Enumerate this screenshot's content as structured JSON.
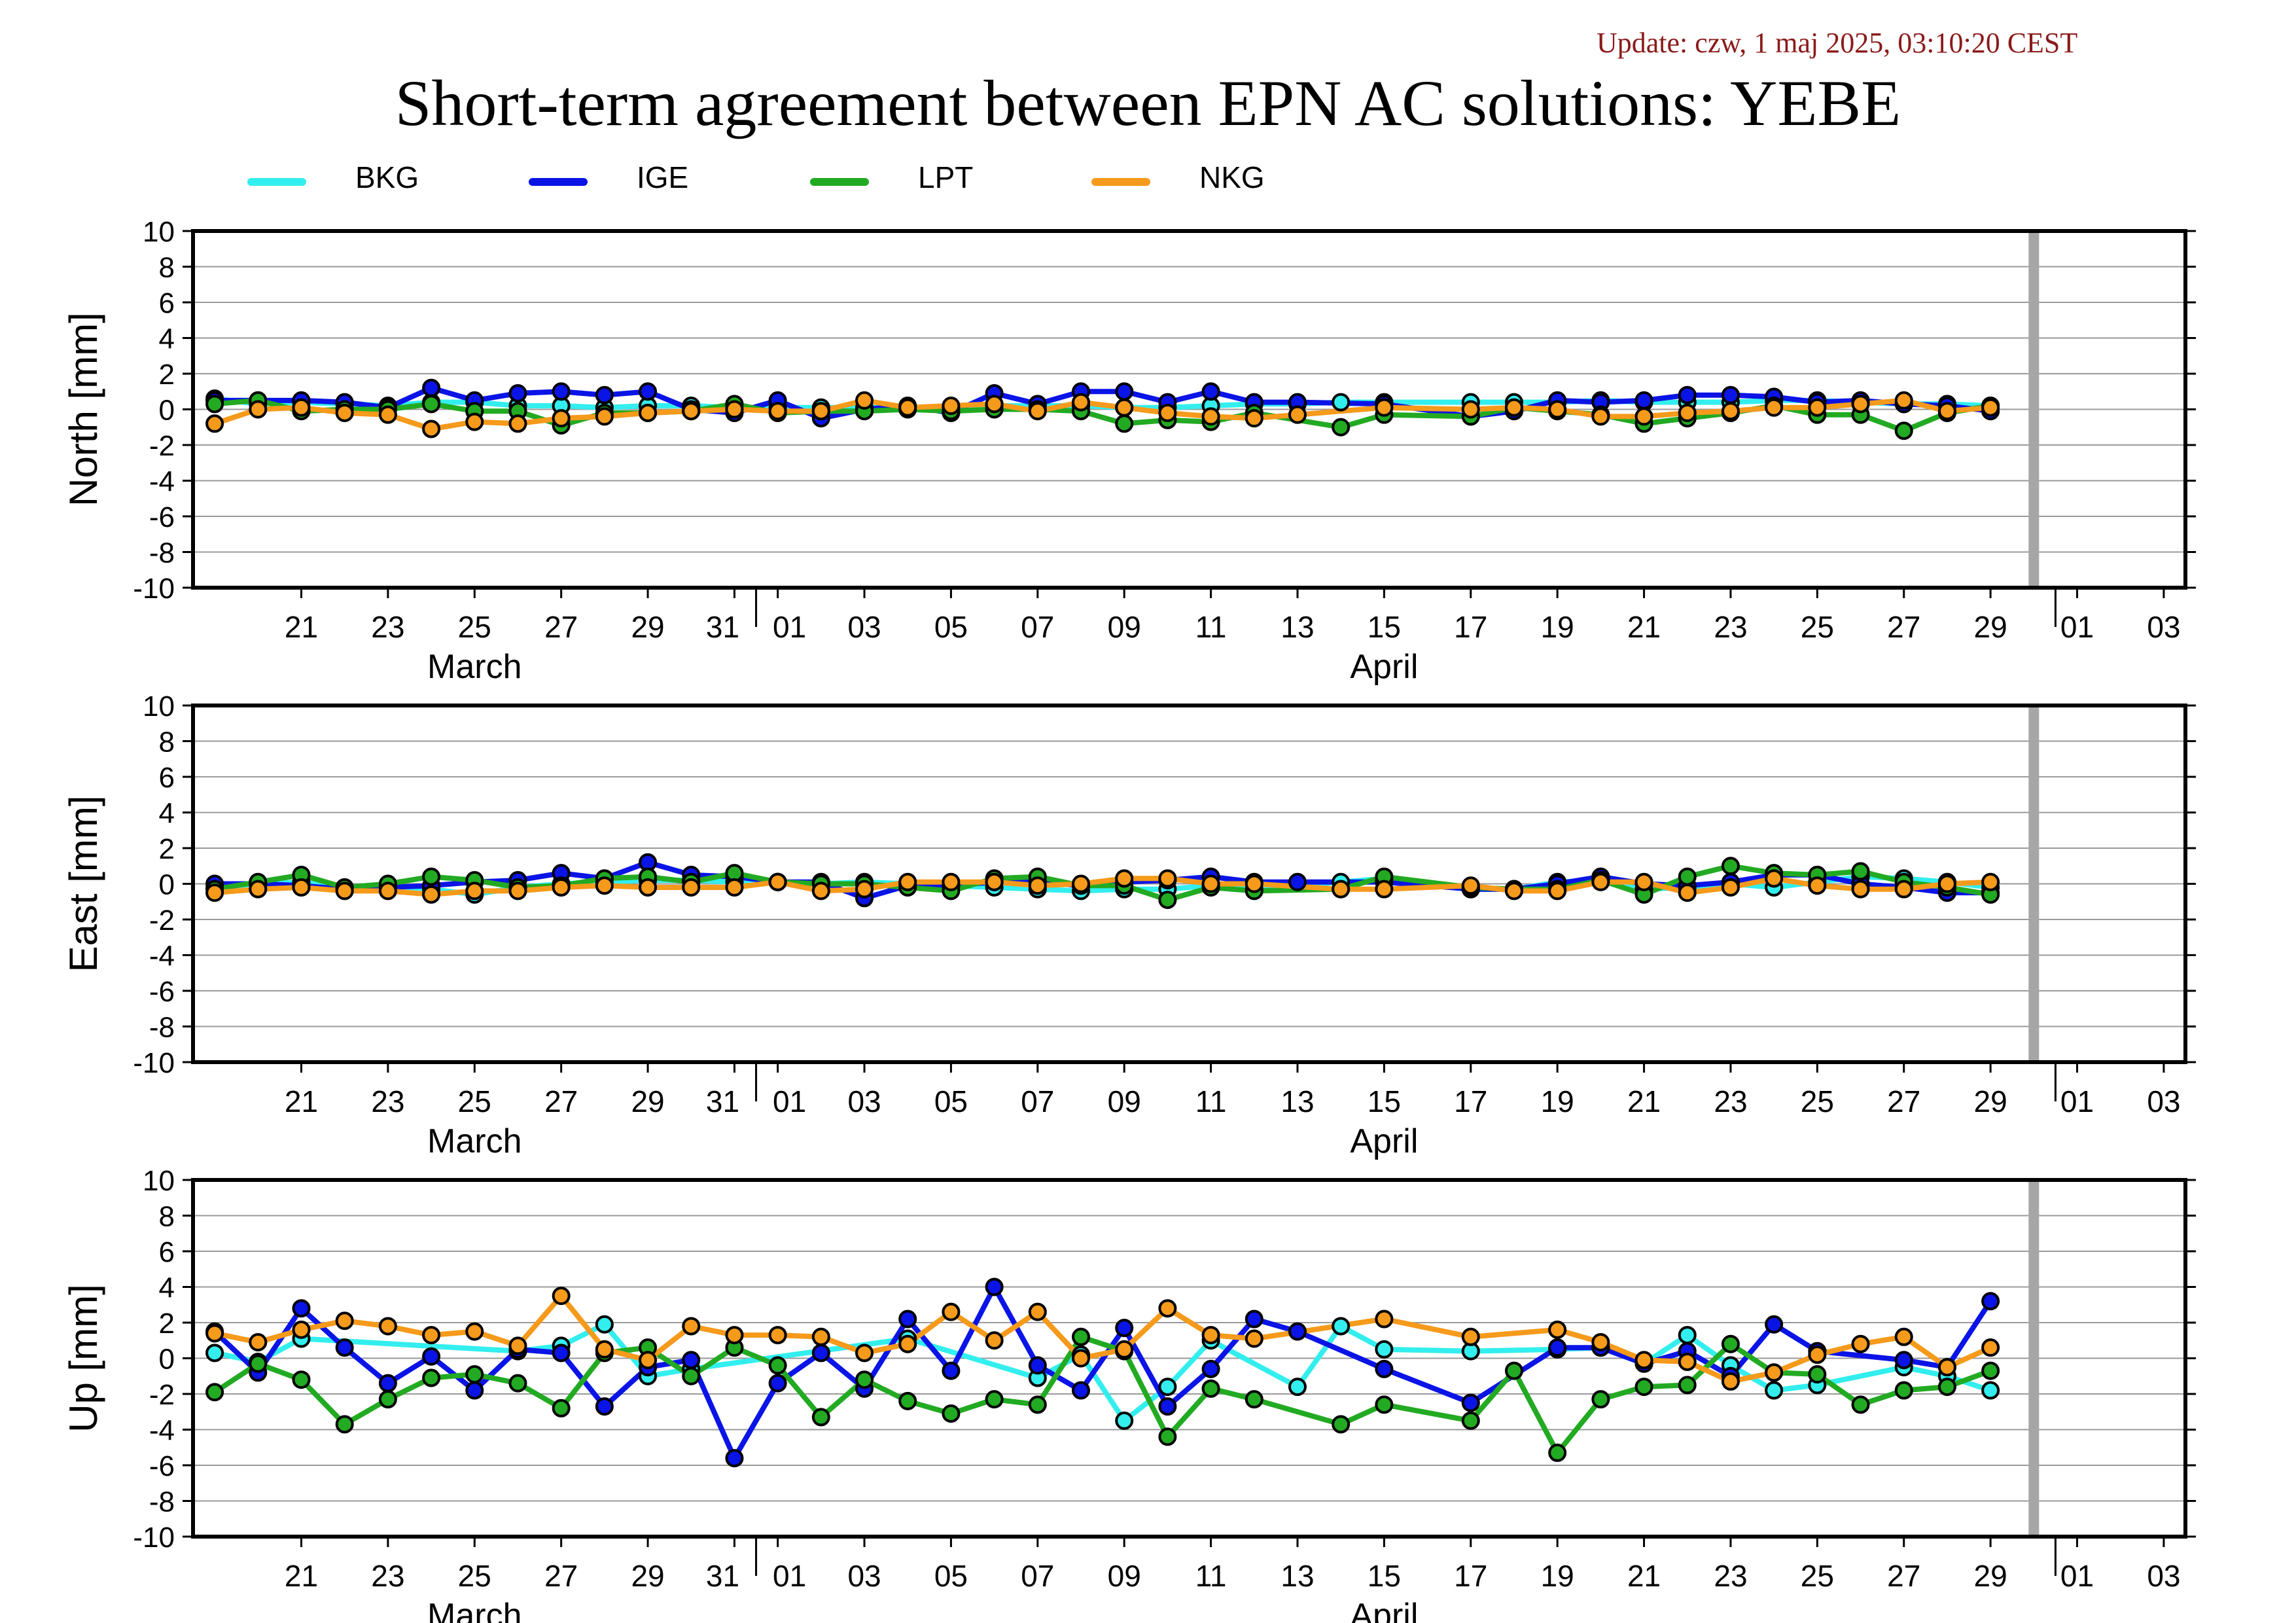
{
  "header": {
    "update": "Update: czw, 1 maj 2025, 03:10:20 CEST",
    "title": "Short-term agreement between EPN AC solutions: YEBE"
  },
  "legend": [
    {
      "name": "BKG",
      "color": "#33eeee"
    },
    {
      "name": "IGE",
      "color": "#0a14e6"
    },
    {
      "name": "LPT",
      "color": "#22aa22"
    },
    {
      "name": "NKG",
      "color": "#f59a1b"
    }
  ],
  "x_axis": {
    "day_ticks": [
      "21",
      "23",
      "25",
      "27",
      "29",
      "31",
      "01",
      "03",
      "05",
      "07",
      "09",
      "11",
      "13",
      "15",
      "17",
      "19",
      "21",
      "23",
      "25",
      "27",
      "29",
      "01",
      "03"
    ],
    "month_labels": [
      "March",
      "April"
    ],
    "range": [
      "2025-03-19",
      "2025-05-04"
    ],
    "marker_date": "2025-04-30"
  },
  "y_ticks": [
    "10",
    "8",
    "6",
    "4",
    "2",
    "0",
    "-2",
    "-4",
    "-6",
    "-8",
    "-10"
  ],
  "chart_data": [
    {
      "type": "line",
      "ylabel": "North [mm]",
      "ylim": [
        -10,
        10
      ],
      "grid": true,
      "x": [
        "2025-03-19",
        "2025-03-20",
        "2025-03-21",
        "2025-03-22",
        "2025-03-23",
        "2025-03-24",
        "2025-03-25",
        "2025-03-26",
        "2025-03-27",
        "2025-03-28",
        "2025-03-29",
        "2025-03-30",
        "2025-03-31",
        "2025-04-01",
        "2025-04-02",
        "2025-04-03",
        "2025-04-04",
        "2025-04-05",
        "2025-04-06",
        "2025-04-07",
        "2025-04-08",
        "2025-04-09",
        "2025-04-10",
        "2025-04-11",
        "2025-04-12",
        "2025-04-13",
        "2025-04-14",
        "2025-04-15",
        "2025-04-16",
        "2025-04-17",
        "2025-04-18",
        "2025-04-19",
        "2025-04-20",
        "2025-04-21",
        "2025-04-22",
        "2025-04-23",
        "2025-04-24",
        "2025-04-25",
        "2025-04-26",
        "2025-04-27",
        "2025-04-28",
        "2025-04-29"
      ],
      "series": [
        {
          "name": "BKG",
          "values": [
            0.6,
            0.3,
            0.4,
            0.3,
            0.2,
            0.4,
            0.4,
            0.2,
            0.2,
            0.1,
            0.2,
            0.2,
            0.1,
            0.1,
            0.1,
            0.1,
            0.1,
            0.1,
            0.2,
            0.2,
            0.2,
            0.1,
            0.1,
            0.2,
            0.3,
            0.3,
            0.4,
            0.4,
            null,
            0.4,
            0.4,
            0.4,
            0.5,
            0.4,
            0.4,
            0.4,
            0.5,
            0.5,
            0.4,
            0.3,
            0.3,
            0.2
          ]
        },
        {
          "name": "IGE",
          "values": [
            0.5,
            0.5,
            0.5,
            0.4,
            0.1,
            1.2,
            0.5,
            0.9,
            1.0,
            0.8,
            1.0,
            0.0,
            -0.2,
            0.5,
            -0.5,
            0.0,
            0.2,
            -0.2,
            0.9,
            0.3,
            1.0,
            1.0,
            0.4,
            1.0,
            0.4,
            0.4,
            null,
            0.3,
            null,
            -0.4,
            -0.1,
            0.5,
            0.4,
            0.5,
            0.8,
            0.8,
            0.7,
            0.4,
            0.5,
            0.3,
            0.2,
            -0.1
          ]
        },
        {
          "name": "LPT",
          "values": [
            0.3,
            0.5,
            -0.1,
            0.0,
            0.0,
            0.3,
            -0.1,
            -0.1,
            -0.9,
            -0.2,
            -0.2,
            -0.1,
            0.3,
            -0.2,
            -0.1,
            -0.1,
            0.0,
            -0.1,
            0.0,
            0.0,
            -0.1,
            -0.8,
            -0.6,
            -0.7,
            -0.2,
            null,
            -1.0,
            -0.3,
            null,
            -0.4,
            0.1,
            -0.1,
            -0.3,
            -0.8,
            -0.5,
            -0.2,
            0.2,
            -0.3,
            -0.3,
            -1.2,
            -0.2,
            0.2
          ]
        },
        {
          "name": "NKG",
          "values": [
            -0.8,
            0.0,
            0.1,
            -0.2,
            -0.3,
            -1.1,
            -0.7,
            -0.8,
            -0.5,
            -0.4,
            -0.2,
            -0.1,
            0.0,
            -0.1,
            -0.1,
            0.5,
            0.1,
            0.2,
            0.3,
            -0.1,
            0.4,
            0.1,
            -0.2,
            -0.4,
            -0.5,
            -0.3,
            null,
            0.1,
            null,
            0.0,
            0.1,
            0.0,
            -0.4,
            -0.4,
            -0.2,
            -0.1,
            0.1,
            0.1,
            0.3,
            0.5,
            -0.1,
            0.1
          ]
        }
      ]
    },
    {
      "type": "line",
      "ylabel": "East [mm]",
      "ylim": [
        -10,
        10
      ],
      "grid": true,
      "x": [
        "2025-03-19",
        "2025-03-20",
        "2025-03-21",
        "2025-03-22",
        "2025-03-23",
        "2025-03-24",
        "2025-03-25",
        "2025-03-26",
        "2025-03-27",
        "2025-03-28",
        "2025-03-29",
        "2025-03-30",
        "2025-03-31",
        "2025-04-01",
        "2025-04-02",
        "2025-04-03",
        "2025-04-04",
        "2025-04-05",
        "2025-04-06",
        "2025-04-07",
        "2025-04-08",
        "2025-04-09",
        "2025-04-10",
        "2025-04-11",
        "2025-04-12",
        "2025-04-13",
        "2025-04-14",
        "2025-04-15",
        "2025-04-16",
        "2025-04-17",
        "2025-04-18",
        "2025-04-19",
        "2025-04-20",
        "2025-04-21",
        "2025-04-22",
        "2025-04-23",
        "2025-04-24",
        "2025-04-25",
        "2025-04-26",
        "2025-04-27",
        "2025-04-28",
        "2025-04-29"
      ],
      "series": [
        {
          "name": "BKG",
          "values": [
            -0.2,
            0.0,
            0.1,
            -0.2,
            -0.1,
            -0.3,
            -0.6,
            -0.2,
            0.0,
            0.1,
            0.2,
            0.2,
            0.1,
            0.1,
            0.0,
            0.1,
            0.0,
            -0.1,
            -0.2,
            -0.3,
            -0.4,
            -0.3,
            -0.3,
            -0.1,
            -0.3,
            null,
            0.1,
            0.3,
            null,
            -0.3,
            -0.3,
            0.1,
            0.2,
            -0.3,
            -0.2,
            0.0,
            -0.2,
            0.1,
            0.4,
            0.3,
            0.1,
            -0.2
          ]
        },
        {
          "name": "IGE",
          "values": [
            0.0,
            0.0,
            -0.1,
            -0.3,
            -0.2,
            -0.1,
            0.1,
            0.2,
            0.6,
            0.3,
            1.2,
            0.5,
            0.4,
            0.1,
            0.1,
            -0.8,
            -0.1,
            -0.1,
            0.1,
            0.1,
            -0.1,
            0.1,
            0.2,
            0.4,
            0.1,
            0.1,
            null,
            0.1,
            null,
            -0.3,
            -0.3,
            0.0,
            0.4,
            0.0,
            -0.1,
            0.1,
            0.5,
            0.5,
            0.0,
            -0.2,
            -0.5,
            -0.5
          ]
        },
        {
          "name": "LPT",
          "values": [
            -0.3,
            0.1,
            0.5,
            -0.2,
            0.0,
            0.4,
            0.2,
            -0.2,
            -0.1,
            0.3,
            0.4,
            0.1,
            0.6,
            0.1,
            0.0,
            0.0,
            -0.2,
            -0.4,
            0.3,
            0.4,
            -0.1,
            -0.1,
            -0.9,
            -0.2,
            -0.4,
            null,
            -0.3,
            0.4,
            null,
            -0.2,
            -0.3,
            -0.3,
            0.2,
            -0.6,
            0.4,
            1.0,
            0.6,
            0.5,
            0.7,
            0.1,
            -0.2,
            -0.6
          ]
        },
        {
          "name": "NKG",
          "values": [
            -0.5,
            -0.3,
            -0.2,
            -0.4,
            -0.4,
            -0.6,
            -0.4,
            -0.4,
            -0.2,
            -0.1,
            -0.2,
            -0.2,
            -0.2,
            0.1,
            -0.4,
            -0.3,
            0.1,
            0.1,
            0.1,
            -0.1,
            0.0,
            0.3,
            0.3,
            0.0,
            0.0,
            null,
            -0.3,
            -0.3,
            null,
            -0.1,
            -0.4,
            -0.4,
            0.1,
            0.1,
            -0.5,
            -0.2,
            0.3,
            -0.1,
            -0.3,
            -0.3,
            0.0,
            0.1
          ]
        }
      ]
    },
    {
      "type": "line",
      "ylabel": "Up [mm]",
      "ylim": [
        -10,
        10
      ],
      "grid": true,
      "x": [
        "2025-03-19",
        "2025-03-20",
        "2025-03-21",
        "2025-03-22",
        "2025-03-23",
        "2025-03-24",
        "2025-03-25",
        "2025-03-26",
        "2025-03-27",
        "2025-03-28",
        "2025-03-29",
        "2025-03-30",
        "2025-03-31",
        "2025-04-01",
        "2025-04-02",
        "2025-04-03",
        "2025-04-04",
        "2025-04-05",
        "2025-04-06",
        "2025-04-07",
        "2025-04-08",
        "2025-04-09",
        "2025-04-10",
        "2025-04-11",
        "2025-04-12",
        "2025-04-13",
        "2025-04-14",
        "2025-04-15",
        "2025-04-16",
        "2025-04-17",
        "2025-04-18",
        "2025-04-19",
        "2025-04-20",
        "2025-04-21",
        "2025-04-22",
        "2025-04-23",
        "2025-04-24",
        "2025-04-25",
        "2025-04-26",
        "2025-04-27",
        "2025-04-28",
        "2025-04-29"
      ],
      "series": [
        {
          "name": "BKG",
          "values": [
            0.3,
            -0.2,
            1.1,
            null,
            null,
            null,
            null,
            0.4,
            0.7,
            1.9,
            -1.0,
            -0.6,
            null,
            null,
            null,
            null,
            1.1,
            null,
            null,
            -1.1,
            0.2,
            -3.5,
            -1.6,
            1.0,
            null,
            -1.6,
            1.8,
            0.5,
            null,
            0.4,
            null,
            0.5,
            0.6,
            -0.3,
            1.3,
            -0.4,
            -1.8,
            -1.5,
            null,
            -0.5,
            -1.0,
            -1.8
          ]
        },
        {
          "name": "IGE",
          "values": [
            1.5,
            -0.8,
            2.8,
            0.6,
            -1.4,
            0.1,
            -1.8,
            0.5,
            0.3,
            -2.7,
            -0.5,
            -0.1,
            -5.6,
            -1.4,
            0.3,
            -1.7,
            2.2,
            -0.7,
            4.0,
            -0.4,
            -1.8,
            1.7,
            -2.7,
            -0.6,
            2.2,
            1.5,
            null,
            -0.6,
            null,
            -2.5,
            null,
            0.6,
            0.6,
            -0.3,
            0.4,
            -1.0,
            1.9,
            0.4,
            null,
            -0.1,
            -0.5,
            3.2
          ]
        },
        {
          "name": "LPT",
          "values": [
            -1.9,
            -0.3,
            -1.2,
            -3.7,
            -2.3,
            -1.1,
            -0.9,
            -1.4,
            -2.8,
            0.3,
            0.6,
            -1.0,
            0.6,
            -0.4,
            -3.3,
            -1.2,
            -2.4,
            -3.1,
            -2.3,
            -2.6,
            1.2,
            0.4,
            -4.4,
            -1.7,
            -2.3,
            null,
            -3.7,
            -2.6,
            null,
            -3.5,
            -0.7,
            -5.3,
            -2.3,
            -1.6,
            -1.5,
            0.8,
            -0.8,
            -0.9,
            -2.6,
            -1.8,
            -1.6,
            -0.7
          ]
        },
        {
          "name": "NKG",
          "values": [
            1.4,
            0.9,
            1.6,
            2.1,
            1.8,
            1.3,
            1.5,
            0.7,
            3.5,
            0.5,
            -0.1,
            1.8,
            1.3,
            1.3,
            1.2,
            0.3,
            0.8,
            2.6,
            1.0,
            2.6,
            0.0,
            0.5,
            2.8,
            1.3,
            1.1,
            null,
            null,
            2.2,
            null,
            1.2,
            null,
            1.6,
            0.9,
            -0.1,
            -0.2,
            -1.3,
            -0.8,
            0.2,
            0.8,
            1.2,
            -0.5,
            0.6
          ]
        }
      ]
    }
  ]
}
